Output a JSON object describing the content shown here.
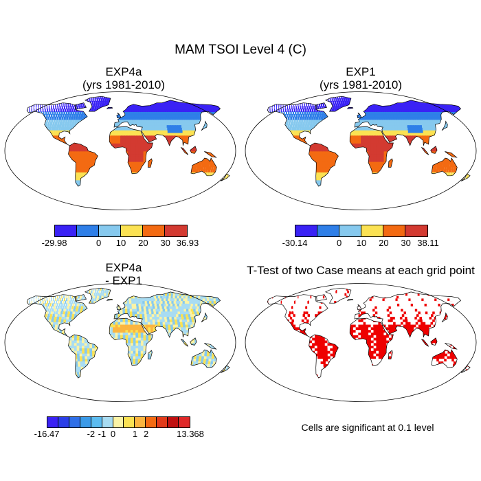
{
  "figure": {
    "title": "MAM TSOI Level 4 (C)"
  },
  "panels": {
    "top_left": {
      "title_line1": "EXP4a",
      "title_line2": "(yrs 1981-2010)",
      "colorbar": {
        "colors": [
          "#3a22f5",
          "#2f7fe8",
          "#86c9ee",
          "#fbe253",
          "#f36a12",
          "#d33a31"
        ],
        "labels": [
          "-29.98",
          "0",
          "10",
          "20",
          "30",
          "36.93"
        ]
      }
    },
    "top_right": {
      "title_line1": "EXP1",
      "title_line2": "(yrs 1981-2010)",
      "colorbar": {
        "colors": [
          "#3a22f5",
          "#2f7fe8",
          "#86c9ee",
          "#fbe253",
          "#f36a12",
          "#d33a31"
        ],
        "labels": [
          "-30.14",
          "0",
          "10",
          "20",
          "30",
          "38.11"
        ]
      }
    },
    "bottom_left": {
      "title_line1": "EXP4a",
      "title_line2": "- EXP1",
      "colorbar": {
        "colors": [
          "#3a22f5",
          "#2a3ee8",
          "#2f6fe8",
          "#3a9ae8",
          "#5cbcf0",
          "#a8dcf2",
          "#fbf3a6",
          "#fbe253",
          "#fbb540",
          "#f36a12",
          "#e23a1a",
          "#c01010",
          "#e02828"
        ],
        "labels": [
          "-16.47",
          "-2",
          "-1",
          "0",
          "1",
          "2",
          "13.368"
        ]
      }
    },
    "bottom_right": {
      "title": "T-Test of two Case means at each grid point",
      "note": "Cells are significant at 0.1 level"
    }
  },
  "colors": {
    "land_outline": "#000000",
    "ocean": "#ffffff",
    "significant": "#ee0000"
  }
}
